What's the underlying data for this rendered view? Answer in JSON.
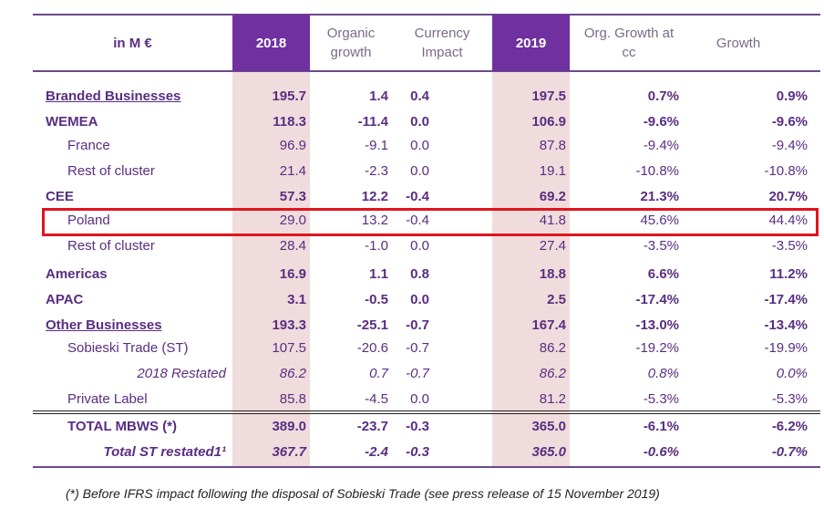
{
  "header": {
    "unit": "in M €",
    "col_2018": "2018",
    "organic": "Organic growth",
    "currency": "Currency Impact",
    "col_2019": "2019",
    "org_growth_cc": "Org. Growth at cc",
    "growth": "Growth"
  },
  "rows": [
    {
      "label": "Branded Businesses",
      "style": "b u",
      "values": [
        "195.7",
        "1.4",
        "0.4",
        "197.5",
        "0.7%",
        "0.9%"
      ]
    },
    {
      "label": "WEMEA",
      "style": "b",
      "values": [
        "118.3",
        "-11.4",
        "0.0",
        "106.9",
        "-9.6%",
        "-9.6%"
      ]
    },
    {
      "label": "France",
      "style": "sub",
      "values": [
        "96.9",
        "-9.1",
        "0.0",
        "87.8",
        "-9.4%",
        "-9.4%"
      ]
    },
    {
      "label": "Rest of cluster",
      "style": "sub",
      "values": [
        "21.4",
        "-2.3",
        "0.0",
        "19.1",
        "-10.8%",
        "-10.8%"
      ]
    },
    {
      "label": "CEE",
      "style": "b",
      "values": [
        "57.3",
        "12.2",
        "-0.4",
        "69.2",
        "21.3%",
        "20.7%"
      ]
    },
    {
      "label": "Poland",
      "style": "sub",
      "values": [
        "29.0",
        "13.2",
        "-0.4",
        "41.8",
        "45.6%",
        "44.4%"
      ]
    },
    {
      "label": "Rest of cluster",
      "style": "sub",
      "values": [
        "28.4",
        "-1.0",
        "0.0",
        "27.4",
        "-3.5%",
        "-3.5%"
      ]
    },
    {
      "label": "Americas",
      "style": "b",
      "values": [
        "16.9",
        "1.1",
        "0.8",
        "18.8",
        "6.6%",
        "11.2%"
      ]
    },
    {
      "label": "APAC",
      "style": "b",
      "values": [
        "3.1",
        "-0.5",
        "0.0",
        "2.5",
        "-17.4%",
        "-17.4%"
      ]
    },
    {
      "label": "Other Businesses",
      "style": "b u",
      "values": [
        "193.3",
        "-25.1",
        "-0.7",
        "167.4",
        "-13.0%",
        "-13.4%"
      ]
    },
    {
      "label": "Sobieski Trade (ST)",
      "style": "sub",
      "values": [
        "107.5",
        "-20.6",
        "-0.7",
        "86.2",
        "-19.2%",
        "-19.9%"
      ]
    },
    {
      "label": "2018 Restated",
      "style": "i ir",
      "values": [
        "86.2",
        "0.7",
        "-0.7",
        "86.2",
        "0.8%",
        "0.0%"
      ]
    },
    {
      "label": "Private Label",
      "style": "sub",
      "values": [
        "85.8",
        "-4.5",
        "0.0",
        "81.2",
        "-5.3%",
        "-5.3%"
      ]
    },
    {
      "label": "TOTAL MBWS (*)",
      "style": "b sub",
      "values": [
        "389.0",
        "-23.7",
        "-0.3",
        "365.0",
        "-6.1%",
        "-6.2%"
      ]
    },
    {
      "label": "Total ST restated1¹",
      "style": "b i ir",
      "values": [
        "367.7",
        "-2.4",
        "-0.3",
        "365.0",
        "-0.6%",
        "-0.7%"
      ]
    }
  ],
  "footnote": "(*) Before IFRS impact following the disposal of Sobieski Trade (see press release of 15 November 2019)",
  "highlight_color": "#e0141e"
}
